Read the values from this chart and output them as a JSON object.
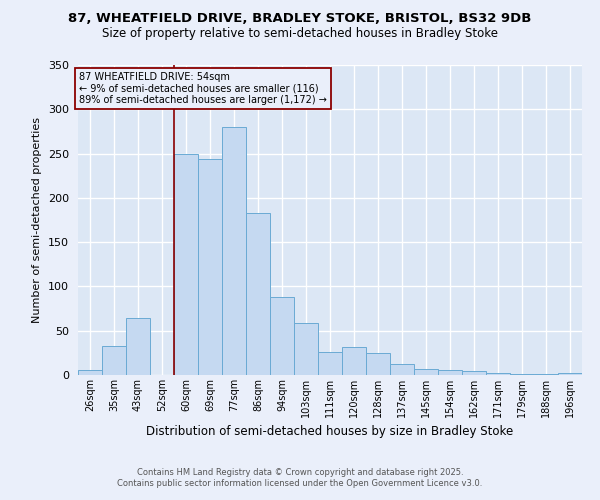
{
  "title_line1": "87, WHEATFIELD DRIVE, BRADLEY STOKE, BRISTOL, BS32 9DB",
  "title_line2": "Size of property relative to semi-detached houses in Bradley Stoke",
  "xlabel": "Distribution of semi-detached houses by size in Bradley Stoke",
  "ylabel": "Number of semi-detached properties",
  "footnote1": "Contains HM Land Registry data © Crown copyright and database right 2025.",
  "footnote2": "Contains public sector information licensed under the Open Government Licence v3.0.",
  "annotation_title": "87 WHEATFIELD DRIVE: 54sqm",
  "annotation_line2": "← 9% of semi-detached houses are smaller (116)",
  "annotation_line3": "89% of semi-detached houses are larger (1,172) →",
  "bar_labels": [
    "26sqm",
    "35sqm",
    "43sqm",
    "52sqm",
    "60sqm",
    "69sqm",
    "77sqm",
    "86sqm",
    "94sqm",
    "103sqm",
    "111sqm",
    "120sqm",
    "128sqm",
    "137sqm",
    "145sqm",
    "154sqm",
    "162sqm",
    "171sqm",
    "179sqm",
    "188sqm",
    "196sqm"
  ],
  "bar_values": [
    6,
    33,
    64,
    0,
    250,
    244,
    280,
    183,
    88,
    59,
    26,
    32,
    25,
    12,
    7,
    6,
    4,
    2,
    1,
    1,
    2
  ],
  "bar_color": "#c5d9f1",
  "bar_edge_color": "#6aaad4",
  "vline_x_index": 3.5,
  "vline_color": "#8b0000",
  "annotation_box_edgecolor": "#8b0000",
  "ylim": [
    0,
    350
  ],
  "yticks": [
    0,
    50,
    100,
    150,
    200,
    250,
    300,
    350
  ],
  "background_color": "#eaeffa",
  "grid_color": "#ffffff",
  "axes_bg_color": "#dce7f5"
}
